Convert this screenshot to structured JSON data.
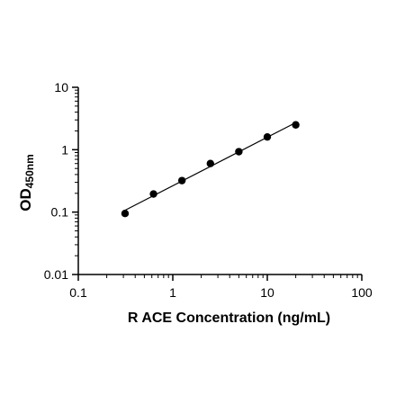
{
  "chart_data": {
    "type": "scatter",
    "x_scale": "log",
    "y_scale": "log",
    "xlim": [
      0.1,
      100
    ],
    "ylim": [
      0.01,
      10
    ],
    "x_ticks": [
      0.1,
      1,
      10,
      100
    ],
    "x_tick_labels": [
      "0.1",
      "1",
      "10",
      "100"
    ],
    "y_ticks": [
      0.01,
      0.1,
      1,
      10
    ],
    "y_tick_labels": [
      "0.01",
      "0.1",
      "1",
      "10"
    ],
    "xlabel": "R ACE Concentration (ng/mL)",
    "ylabel_main": "OD",
    "ylabel_sub": "450nm",
    "grid": false,
    "fit_line": true,
    "series": [
      {
        "x": [
          0.3125,
          0.625,
          1.25,
          2.5,
          5,
          10,
          20
        ],
        "y": [
          0.095,
          0.195,
          0.32,
          0.6,
          0.93,
          1.6,
          2.5
        ]
      }
    ]
  }
}
